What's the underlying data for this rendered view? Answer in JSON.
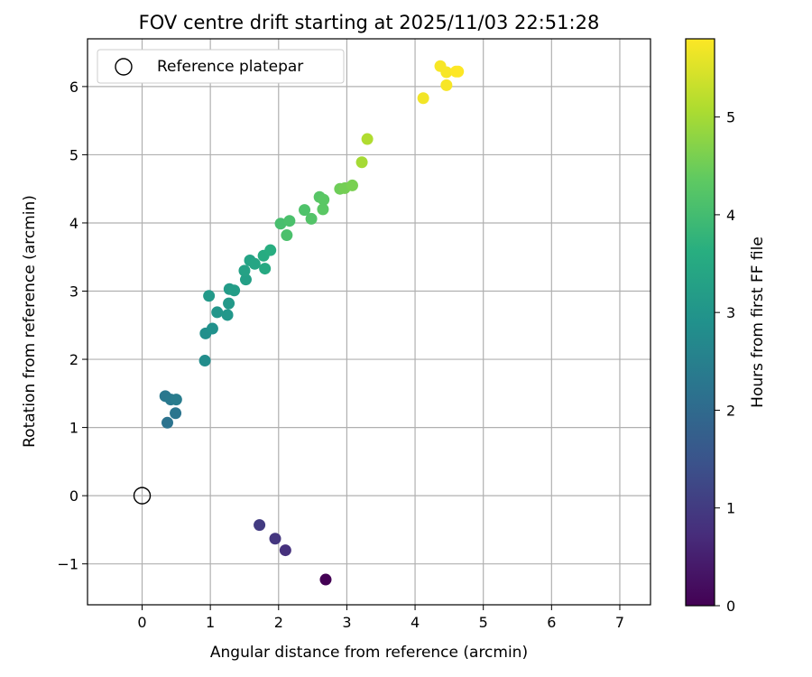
{
  "chart_data": {
    "type": "scatter",
    "title": "FOV centre drift starting at 2025/11/03 22:51:28",
    "xlabel": "Angular distance from reference (arcmin)",
    "ylabel": "Rotation from reference (arcmin)",
    "xlim": [
      -0.8,
      7.45
    ],
    "ylim": [
      -1.6,
      6.7
    ],
    "xticks": [
      0,
      1,
      2,
      3,
      4,
      5,
      6,
      7
    ],
    "yticks": [
      -1,
      0,
      1,
      2,
      3,
      4,
      5,
      6
    ],
    "grid": true,
    "legend": {
      "location": "upper-left",
      "entries": [
        "Reference platepar"
      ]
    },
    "reference_point": {
      "x": 0,
      "y": 0,
      "label": "Reference platepar"
    },
    "colorbar": {
      "label": "Hours from first FF file",
      "colormap": "viridis",
      "range": [
        0,
        5.8
      ],
      "ticks": [
        0,
        1,
        2,
        3,
        4,
        5
      ]
    },
    "points": [
      {
        "x": 2.69,
        "y": -1.23,
        "hours": 0.0
      },
      {
        "x": 2.1,
        "y": -0.8,
        "hours": 0.8
      },
      {
        "x": 1.95,
        "y": -0.63,
        "hours": 0.9
      },
      {
        "x": 1.72,
        "y": -0.43,
        "hours": 1.0
      },
      {
        "x": 0.37,
        "y": 1.07,
        "hours": 2.2
      },
      {
        "x": 0.49,
        "y": 1.21,
        "hours": 2.25
      },
      {
        "x": 0.34,
        "y": 1.46,
        "hours": 2.3
      },
      {
        "x": 0.42,
        "y": 1.41,
        "hours": 2.35
      },
      {
        "x": 0.5,
        "y": 1.41,
        "hours": 2.4
      },
      {
        "x": 0.92,
        "y": 1.98,
        "hours": 2.8
      },
      {
        "x": 0.93,
        "y": 2.38,
        "hours": 2.85
      },
      {
        "x": 1.03,
        "y": 2.45,
        "hours": 2.9
      },
      {
        "x": 1.1,
        "y": 2.69,
        "hours": 3.0
      },
      {
        "x": 1.25,
        "y": 2.65,
        "hours": 3.05
      },
      {
        "x": 1.27,
        "y": 2.82,
        "hours": 3.1
      },
      {
        "x": 0.98,
        "y": 2.93,
        "hours": 3.1
      },
      {
        "x": 1.28,
        "y": 3.03,
        "hours": 3.15
      },
      {
        "x": 1.35,
        "y": 3.01,
        "hours": 3.2
      },
      {
        "x": 1.52,
        "y": 3.17,
        "hours": 3.25
      },
      {
        "x": 1.5,
        "y": 3.3,
        "hours": 3.3
      },
      {
        "x": 1.58,
        "y": 3.45,
        "hours": 3.35
      },
      {
        "x": 1.65,
        "y": 3.4,
        "hours": 3.4
      },
      {
        "x": 1.8,
        "y": 3.33,
        "hours": 3.5
      },
      {
        "x": 1.78,
        "y": 3.52,
        "hours": 3.55
      },
      {
        "x": 1.88,
        "y": 3.6,
        "hours": 3.6
      },
      {
        "x": 2.03,
        "y": 3.99,
        "hours": 4.05
      },
      {
        "x": 2.12,
        "y": 3.82,
        "hours": 4.1
      },
      {
        "x": 2.16,
        "y": 4.03,
        "hours": 4.1
      },
      {
        "x": 2.38,
        "y": 4.19,
        "hours": 4.15
      },
      {
        "x": 2.48,
        "y": 4.06,
        "hours": 4.2
      },
      {
        "x": 2.6,
        "y": 4.38,
        "hours": 4.25
      },
      {
        "x": 2.66,
        "y": 4.34,
        "hours": 4.3
      },
      {
        "x": 2.65,
        "y": 4.2,
        "hours": 4.3
      },
      {
        "x": 2.9,
        "y": 4.5,
        "hours": 4.5
      },
      {
        "x": 2.97,
        "y": 4.51,
        "hours": 4.55
      },
      {
        "x": 3.08,
        "y": 4.55,
        "hours": 4.6
      },
      {
        "x": 3.22,
        "y": 4.89,
        "hours": 5.0
      },
      {
        "x": 3.3,
        "y": 5.23,
        "hours": 5.1
      },
      {
        "x": 4.12,
        "y": 5.83,
        "hours": 5.7
      },
      {
        "x": 4.37,
        "y": 6.3,
        "hours": 5.75
      },
      {
        "x": 4.46,
        "y": 6.21,
        "hours": 5.75
      },
      {
        "x": 4.46,
        "y": 6.02,
        "hours": 5.75
      },
      {
        "x": 4.6,
        "y": 6.22,
        "hours": 5.8
      },
      {
        "x": 4.63,
        "y": 6.22,
        "hours": 5.8
      }
    ]
  }
}
